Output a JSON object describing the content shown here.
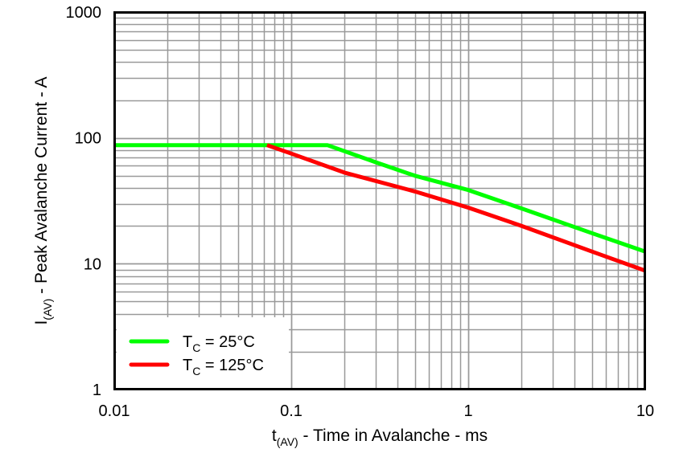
{
  "chart_data": {
    "type": "line",
    "title": "",
    "xlabel": "t(AV) - Time in Avalanche - ms",
    "ylabel": "I(AV) - Peak Avalanche Current - A",
    "xlabel_parts": {
      "main": "t",
      "sub": "(AV)",
      "rest": " - Time in Avalanche - ms"
    },
    "ylabel_parts": {
      "main": "I",
      "sub": "(AV)",
      "rest": " - Peak Avalanche Current - A"
    },
    "xscale": "log",
    "yscale": "log",
    "xlim": [
      0.01,
      10
    ],
    "ylim": [
      1,
      1000
    ],
    "x_ticks": [
      "0.01",
      "0.1",
      "1",
      "10"
    ],
    "y_ticks": [
      "1",
      "10",
      "100",
      "1000"
    ],
    "grid": true,
    "legend_position": "lower left",
    "series": [
      {
        "name": "TC = 25°C",
        "label_main": "T",
        "label_sub": "C",
        "label_rest": " = 25°C",
        "color": "#00ff00",
        "x": [
          0.01,
          0.16,
          0.3,
          0.5,
          1,
          2,
          5,
          10
        ],
        "y": [
          87.6,
          87.6,
          64,
          50,
          38.5,
          27.5,
          17.5,
          12.5
        ]
      },
      {
        "name": "TC = 125°C",
        "label_main": "T",
        "label_sub": "C",
        "label_rest": " = 125°C",
        "color": "#ff0000",
        "x": [
          0.073,
          0.1,
          0.2,
          0.5,
          1,
          2,
          5,
          10
        ],
        "y": [
          87.6,
          75,
          53,
          37.5,
          27.9,
          20,
          12.5,
          8.8
        ]
      }
    ]
  }
}
